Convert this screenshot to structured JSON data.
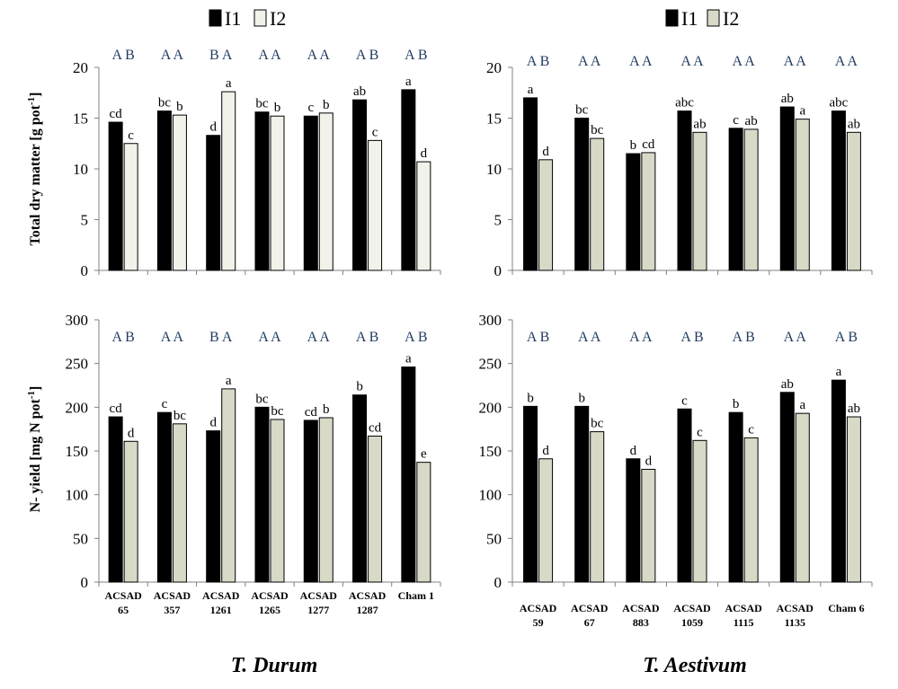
{
  "colors": {
    "I1": "#000000",
    "I2_durum_dm": "#f2f2ea",
    "I2": "#d9d9c8",
    "axis": "#808080",
    "group_letters": "#1f3a5f"
  },
  "legend": {
    "labels": [
      "I1",
      "I2"
    ]
  },
  "ylabels": {
    "top": "Total dry matter [g pot",
    "top_sup": "-1",
    "top_end": "]",
    "bottom": "N- yield [mg N  pot",
    "bottom_sup": "-1",
    "bottom_end": "]"
  },
  "species": {
    "left": "T. Durum",
    "right": "T. Aestivum"
  },
  "chart_data": [
    {
      "type": "bar",
      "panel": "durum-dry-matter",
      "categories": [
        "ACSAD 65",
        "ACSAD 357",
        "ACSAD 1261",
        "ACSAD 1265",
        "ACSAD 1277",
        "ACSAD 1287",
        "Cham 1"
      ],
      "series": [
        {
          "name": "I1",
          "values": [
            14.6,
            15.7,
            13.3,
            15.6,
            15.2,
            16.8,
            17.8
          ]
        },
        {
          "name": "I2",
          "values": [
            12.5,
            15.3,
            17.6,
            15.2,
            15.5,
            12.8,
            10.7
          ]
        }
      ],
      "letters": [
        [
          "cd",
          "c"
        ],
        [
          "bc",
          "b"
        ],
        [
          "d",
          "a"
        ],
        [
          "bc",
          "b"
        ],
        [
          "c",
          "b"
        ],
        [
          "ab",
          "c"
        ],
        [
          "a",
          "d"
        ]
      ],
      "group_letters": [
        "A B",
        "A A",
        "B A",
        "A A",
        "A A",
        "A B",
        "A B"
      ],
      "ylim": [
        0,
        20
      ],
      "yticks": [
        0,
        5,
        10,
        15,
        20
      ],
      "ylabel": "Total dry matter [g pot-1]"
    },
    {
      "type": "bar",
      "panel": "aestivum-dry-matter",
      "categories": [
        "ACSAD 59",
        "ACSAD 67",
        "ACSAD 883",
        "ACSAD 1059",
        "ACSAD 1115",
        "ACSAD 1135",
        "Cham 6"
      ],
      "series": [
        {
          "name": "I1",
          "values": [
            17.0,
            15.0,
            11.5,
            15.7,
            14.0,
            16.1,
            15.7
          ]
        },
        {
          "name": "I2",
          "values": [
            10.9,
            13.0,
            11.6,
            13.6,
            13.9,
            14.9,
            13.6
          ]
        }
      ],
      "letters": [
        [
          "a",
          "d"
        ],
        [
          "bc",
          "bc"
        ],
        [
          "b",
          "cd"
        ],
        [
          "abc",
          "ab"
        ],
        [
          "c",
          "ab"
        ],
        [
          "ab",
          "a"
        ],
        [
          "abc",
          "ab"
        ]
      ],
      "group_letters": [
        "A B",
        "A A",
        "A A",
        "A A",
        "A A",
        "A A",
        "A A"
      ],
      "ylim": [
        0,
        20
      ],
      "yticks": [
        0,
        5,
        10,
        15,
        20
      ]
    },
    {
      "type": "bar",
      "panel": "durum-n-yield",
      "categories": [
        "ACSAD 65",
        "ACSAD 357",
        "ACSAD 1261",
        "ACSAD 1265",
        "ACSAD 1277",
        "ACSAD 1287",
        "Cham 1"
      ],
      "series": [
        {
          "name": "I1",
          "values": [
            189,
            194,
            173,
            200,
            185,
            214,
            246
          ]
        },
        {
          "name": "I2",
          "values": [
            161,
            181,
            221,
            186,
            188,
            167,
            137
          ]
        }
      ],
      "letters": [
        [
          "cd",
          "d"
        ],
        [
          "c",
          "bc"
        ],
        [
          "d",
          "a"
        ],
        [
          "bc",
          "bc"
        ],
        [
          "cd",
          "b"
        ],
        [
          "b",
          "cd"
        ],
        [
          "a",
          "e"
        ]
      ],
      "group_letters": [
        "A B",
        "A A",
        "B A",
        "A A",
        "A A",
        "A B",
        "A B"
      ],
      "ylim": [
        0,
        300
      ],
      "yticks": [
        0,
        50,
        100,
        150,
        200,
        250,
        300
      ],
      "ylabel": "N- yield [mg N pot-1]",
      "tick_labels": [
        [
          "ACSAD",
          "65"
        ],
        [
          "ACSAD",
          "357"
        ],
        [
          "ACSAD",
          "1261"
        ],
        [
          "ACSAD",
          "1265"
        ],
        [
          "ACSAD",
          "1277"
        ],
        [
          "ACSAD",
          "1287"
        ],
        [
          "Cham 1",
          ""
        ]
      ]
    },
    {
      "type": "bar",
      "panel": "aestivum-n-yield",
      "categories": [
        "ACSAD 59",
        "ACSAD 67",
        "ACSAD 883",
        "ACSAD 1059",
        "ACSAD 1115",
        "ACSAD 1135",
        "Cham 6"
      ],
      "series": [
        {
          "name": "I1",
          "values": [
            201,
            201,
            141,
            198,
            194,
            217,
            231
          ]
        },
        {
          "name": "I2",
          "values": [
            141,
            172,
            129,
            162,
            165,
            193,
            189
          ]
        }
      ],
      "letters": [
        [
          "b",
          "d"
        ],
        [
          "b",
          "bc"
        ],
        [
          "d",
          "d"
        ],
        [
          "c",
          "c"
        ],
        [
          "b",
          "c"
        ],
        [
          "ab",
          "a"
        ],
        [
          "a",
          "ab"
        ]
      ],
      "group_letters": [
        "A B",
        "A A",
        "A A",
        "A B",
        "A B",
        "A A",
        "A B"
      ],
      "ylim": [
        0,
        300
      ],
      "yticks": [
        0,
        50,
        100,
        150,
        200,
        250,
        300
      ],
      "tick_labels": [
        [
          "ACSAD",
          "59"
        ],
        [
          "ACSAD",
          "67"
        ],
        [
          "ACSAD",
          "883"
        ],
        [
          "ACSAD",
          "1059"
        ],
        [
          "ACSAD",
          "1115"
        ],
        [
          "ACSAD",
          "1135"
        ],
        [
          "Cham 6",
          ""
        ]
      ]
    }
  ]
}
